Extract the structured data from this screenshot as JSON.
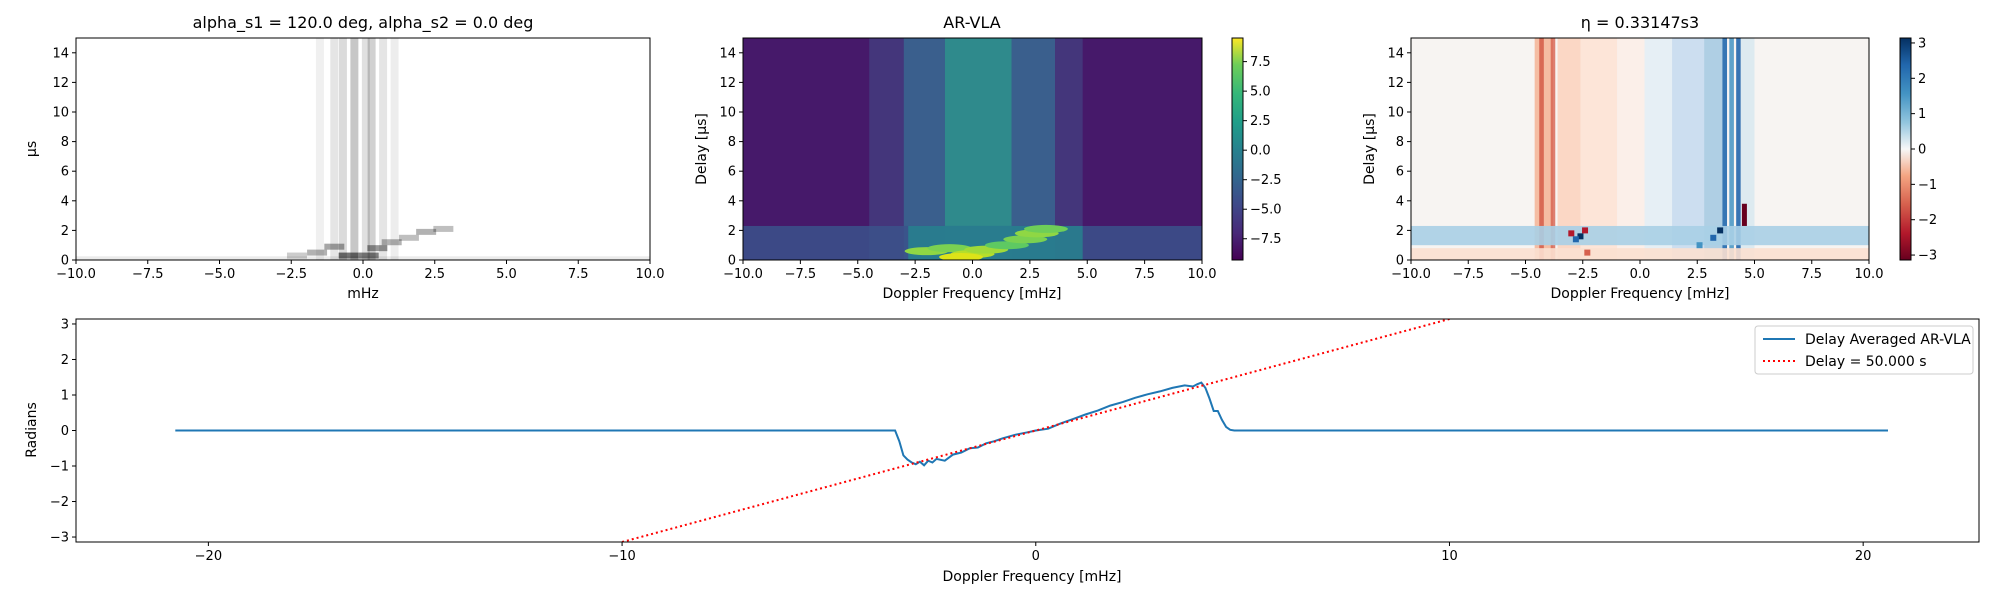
{
  "chart_data": [
    {
      "type": "heatmap",
      "title": "alpha_s1 = 120.0 deg, alpha_s2 = 0.0 deg",
      "xlabel": "mHz",
      "ylabel": "µs",
      "xlim": [
        -10,
        10
      ],
      "ylim": [
        0,
        15
      ],
      "xticks": [
        "−10.0",
        "−7.5",
        "−5.0",
        "−2.5",
        "0.0",
        "2.5",
        "5.0",
        "7.5",
        "10.0"
      ],
      "xtick_values": [
        -10,
        -7.5,
        -5,
        -2.5,
        0,
        2.5,
        5,
        7.5,
        10
      ],
      "yticks": [
        "0",
        "2",
        "4",
        "6",
        "8",
        "10",
        "12",
        "14"
      ],
      "ytick_values": [
        0,
        2,
        4,
        6,
        8,
        10,
        12,
        14
      ],
      "colormap": "Greys",
      "colorbar": false
    },
    {
      "type": "heatmap",
      "title": "AR-VLA",
      "xlabel": "Doppler Frequency [mHz]",
      "ylabel": "Delay [µs]",
      "xlim": [
        -10,
        10
      ],
      "ylim": [
        0,
        15
      ],
      "xticks": [
        "−10.0",
        "−7.5",
        "−5.0",
        "−2.5",
        "0.0",
        "2.5",
        "5.0",
        "7.5",
        "10.0"
      ],
      "xtick_values": [
        -10,
        -7.5,
        -5,
        -2.5,
        0,
        2.5,
        5,
        7.5,
        10
      ],
      "yticks": [
        "0",
        "2",
        "4",
        "6",
        "8",
        "10",
        "12",
        "14"
      ],
      "ytick_values": [
        0,
        2,
        4,
        6,
        8,
        10,
        12,
        14
      ],
      "colormap": "viridis",
      "colorbar": {
        "range": [
          -9.3,
          9.5
        ],
        "ticks": [
          "7.5",
          "5.0",
          "2.5",
          "0.0",
          "−2.5",
          "−5.0",
          "−7.5"
        ],
        "tick_values": [
          7.5,
          5,
          2.5,
          0,
          -2.5,
          -5,
          -7.5
        ]
      }
    },
    {
      "type": "heatmap",
      "title": "η = 0.33147s3",
      "xlabel": "Doppler Frequency [mHz]",
      "ylabel": "Delay [µs]",
      "xlim": [
        -10,
        10
      ],
      "ylim": [
        0,
        15
      ],
      "xticks": [
        "−10.0",
        "−7.5",
        "−5.0",
        "−2.5",
        "0.0",
        "2.5",
        "5.0",
        "7.5",
        "10.0"
      ],
      "xtick_values": [
        -10,
        -7.5,
        -5,
        -2.5,
        0,
        2.5,
        5,
        7.5,
        10
      ],
      "yticks": [
        "0",
        "2",
        "4",
        "6",
        "8",
        "10",
        "12",
        "14"
      ],
      "ytick_values": [
        0,
        2,
        4,
        6,
        8,
        10,
        12,
        14
      ],
      "colormap": "RdBu",
      "colorbar": {
        "range": [
          -3.14,
          3.14
        ],
        "ticks": [
          "3",
          "2",
          "1",
          "0",
          "−1",
          "−2",
          "−3"
        ],
        "tick_values": [
          3,
          2,
          1,
          0,
          -1,
          -2,
          -3
        ]
      }
    },
    {
      "type": "line",
      "title": "",
      "xlabel": "Doppler Frequency [mHz]",
      "ylabel": "Radians",
      "xlim": [
        -23.2,
        22.8
      ],
      "ylim": [
        -3.14,
        3.14
      ],
      "xticks": [
        "−20",
        "−10",
        "0",
        "10",
        "20"
      ],
      "xtick_values": [
        -20,
        -10,
        0,
        10,
        20
      ],
      "yticks": [
        "3",
        "2",
        "1",
        "0",
        "−1",
        "−2",
        "−3"
      ],
      "ytick_values": [
        3,
        2,
        1,
        0,
        -1,
        -2,
        -3
      ],
      "legend": "top-right",
      "series": [
        {
          "name": "Delay Averaged  AR-VLA",
          "style": "solid",
          "color": "#1f77b4",
          "x": [
            -20.8,
            -3.4,
            -3.3,
            -3.2,
            -3.1,
            -3.0,
            -2.9,
            -2.8,
            -2.7,
            -2.6,
            -2.5,
            -2.4,
            -2.2,
            -2.0,
            -1.8,
            -1.6,
            -1.4,
            -1.2,
            -1.0,
            -0.8,
            -0.5,
            -0.2,
            0.0,
            0.3,
            0.6,
            0.9,
            1.2,
            1.5,
            1.8,
            2.1,
            2.4,
            2.7,
            3.0,
            3.3,
            3.6,
            3.8,
            3.9,
            4.0,
            4.1,
            4.2,
            4.3,
            4.4,
            4.5,
            4.6,
            4.7,
            4.8,
            20.6
          ],
          "y": [
            0.0,
            0.0,
            -0.3,
            -0.7,
            -0.82,
            -0.9,
            -0.95,
            -0.88,
            -0.98,
            -0.85,
            -0.9,
            -0.8,
            -0.85,
            -0.68,
            -0.62,
            -0.5,
            -0.48,
            -0.36,
            -0.3,
            -0.22,
            -0.12,
            -0.05,
            0.0,
            0.05,
            0.2,
            0.32,
            0.45,
            0.56,
            0.7,
            0.8,
            0.92,
            1.02,
            1.1,
            1.2,
            1.27,
            1.24,
            1.3,
            1.35,
            1.2,
            0.9,
            0.55,
            0.55,
            0.3,
            0.1,
            0.02,
            0.0,
            0.0
          ]
        },
        {
          "name": "Delay = 50.000 s",
          "style": "dotted",
          "color": "#ff0000",
          "x": [
            -10.0,
            10.0
          ],
          "y": [
            -3.14,
            3.14
          ]
        }
      ]
    }
  ]
}
